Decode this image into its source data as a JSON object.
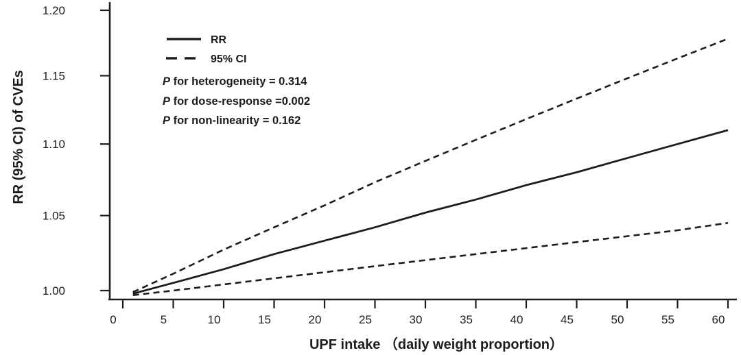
{
  "colors": {
    "ink": "#1c1c1c",
    "background": "#ffffff"
  },
  "y_axis": {
    "label": "RR (95% CI) of CVEs",
    "tick_labels": [
      "1.00",
      "1.05",
      "1.10",
      "1.15",
      "1.20"
    ],
    "tick_values": [
      1.0,
      1.05,
      1.1,
      1.15,
      1.2
    ],
    "scale": "log"
  },
  "x_axis": {
    "label": "UPF intake （daily weight proportion）",
    "tick_labels": [
      "0",
      "5",
      "10",
      "15",
      "20",
      "25",
      "30",
      "35",
      "40",
      "45",
      "50",
      "55",
      "60"
    ],
    "tick_values": [
      0,
      5,
      10,
      15,
      20,
      25,
      30,
      35,
      40,
      45,
      50,
      55,
      60
    ]
  },
  "legend": {
    "items": [
      {
        "label": "RR",
        "style": "solid"
      },
      {
        "label": "95% CI",
        "style": "dashed"
      }
    ]
  },
  "annotations": [
    {
      "italic": "P",
      "rest": " for heterogeneity = 0.314"
    },
    {
      "italic": "P",
      "rest": " for dose-response =0.002"
    },
    {
      "italic": "P",
      "rest": " for non-linearity = 0.162"
    }
  ],
  "chart_data": {
    "type": "line",
    "title": "",
    "xlabel": "UPF intake （daily weight proportion）",
    "ylabel": "RR (95% CI) of CVEs",
    "xlim": [
      0,
      62
    ],
    "ylim": [
      0.997,
      1.205
    ],
    "y_scale": "log",
    "grid": false,
    "legend_position": "upper-left-inside",
    "x": [
      1,
      5,
      10,
      15,
      20,
      25,
      30,
      35,
      40,
      45,
      50,
      55,
      60
    ],
    "series": [
      {
        "name": "RR",
        "style": "solid",
        "values": [
          0.998,
          1.005,
          1.014,
          1.024,
          1.033,
          1.042,
          1.052,
          1.061,
          1.071,
          1.08,
          1.09,
          1.1,
          1.11
        ]
      },
      {
        "name": "95% CI upper",
        "style": "dashed",
        "values": [
          0.999,
          1.011,
          1.027,
          1.042,
          1.057,
          1.073,
          1.088,
          1.103,
          1.118,
          1.133,
          1.148,
          1.163,
          1.178
        ]
      },
      {
        "name": "95% CI lower",
        "style": "dashed",
        "values": [
          0.997,
          1.0,
          1.004,
          1.008,
          1.012,
          1.016,
          1.02,
          1.024,
          1.028,
          1.032,
          1.036,
          1.04,
          1.045
        ]
      }
    ],
    "annotations": [
      "P for heterogeneity = 0.314",
      "P for dose-response =0.002",
      "P for non-linearity = 0.162"
    ],
    "summary": "RR at UPF intake 60 = 1.11 (95% CI 1.04 - 1.18)"
  }
}
